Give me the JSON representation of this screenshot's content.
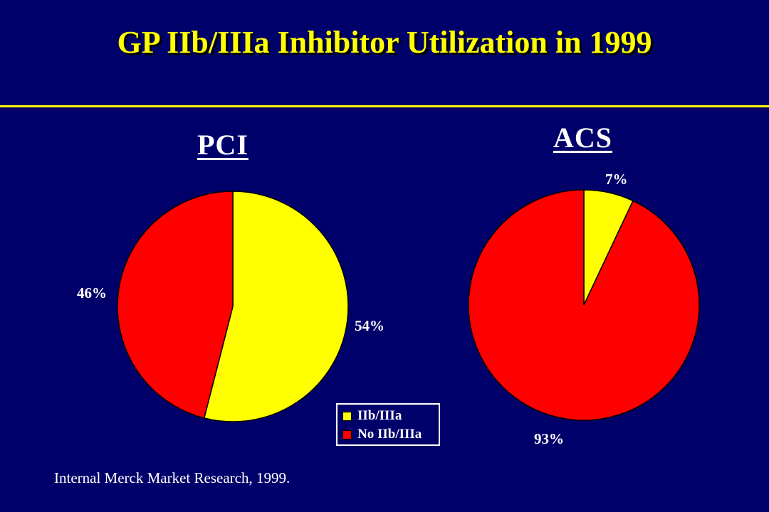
{
  "slide": {
    "title": "GP IIb/IIIa Inhibitor Utilization in 1999",
    "source": "Internal Merck Market Research, 1999."
  },
  "colors": {
    "background": "#00006a",
    "title": "#ffff00",
    "iib_iiia": "#ffff00",
    "no_iib_iiia": "#ff0000"
  },
  "legend": {
    "items": [
      {
        "label": "IIb/IIIa",
        "color": "#ffff00"
      },
      {
        "label": "No IIb/IIIa",
        "color": "#ff0000"
      }
    ]
  },
  "chart_data": [
    {
      "type": "pie",
      "title": "PCI",
      "categories": [
        "IIb/IIIa",
        "No IIb/IIIa"
      ],
      "values": [
        54,
        46
      ],
      "labels": [
        "54%",
        "46%"
      ],
      "legend": "bottom-right"
    },
    {
      "type": "pie",
      "title": "ACS",
      "categories": [
        "IIb/IIIa",
        "No IIb/IIIa"
      ],
      "values": [
        7,
        93
      ],
      "labels": [
        "7%",
        "93%"
      ]
    }
  ]
}
